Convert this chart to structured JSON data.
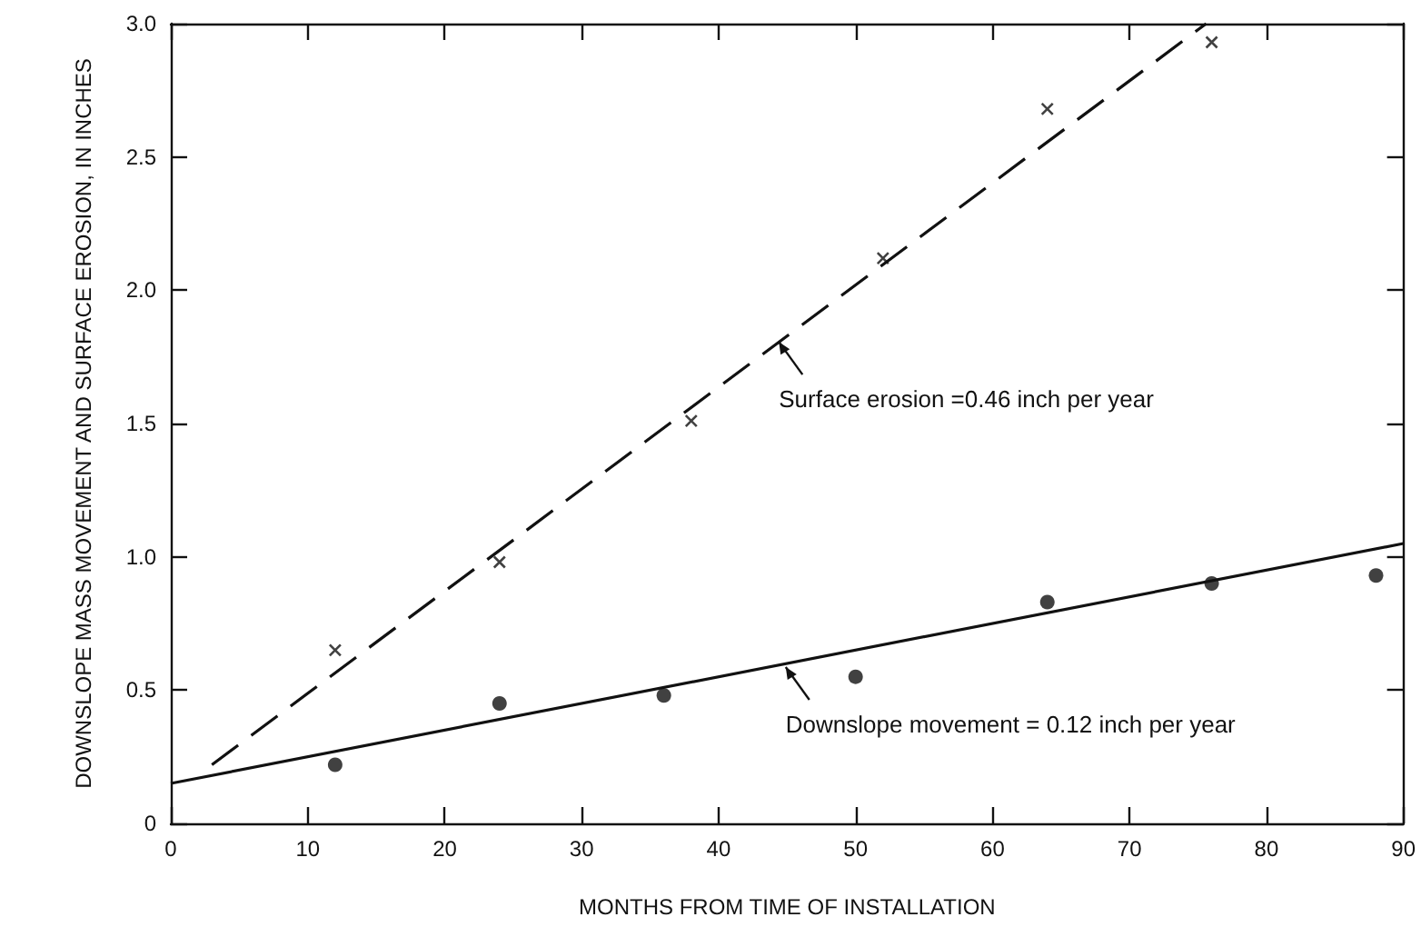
{
  "chart_data": {
    "type": "scatter",
    "xlabel": "MONTHS FROM TIME OF INSTALLATION",
    "ylabel": "DOWNSLOPE MASS MOVEMENT AND SURFACE EROSION, IN INCHES",
    "xlim": [
      0,
      90
    ],
    "xticks": [
      0,
      10,
      20,
      30,
      40,
      50,
      60,
      70,
      80,
      90
    ],
    "ylim": [
      0,
      3
    ],
    "yticks": [
      0,
      {
        "value": 0.5,
        "label": "0.5"
      },
      {
        "value": 1,
        "label": "1.0"
      },
      {
        "value": 1.5,
        "label": "1.5"
      },
      {
        "value": 2,
        "label": "2.0"
      },
      {
        "value": 2.5,
        "label": "2.5"
      },
      {
        "value": 3,
        "label": "3.0"
      }
    ],
    "grid": false,
    "series": [
      {
        "marker": "cross",
        "color": "#111111",
        "x": [
          12,
          24,
          38,
          52,
          64,
          76
        ],
        "values": [
          0.65,
          0.98,
          1.51,
          2.12,
          2.68,
          2.93
        ]
      },
      {
        "marker": "circle",
        "color": "#111111",
        "x": [
          12,
          24,
          36,
          50,
          64,
          76,
          88
        ],
        "values": [
          0.22,
          0.45,
          0.48,
          0.55,
          0.83,
          0.9,
          0.93
        ]
      },
      {
        "type": "line",
        "marker": "none",
        "line_style": "dashed",
        "color": "#111111",
        "x": [
          3,
          75.6
        ],
        "values": [
          0.22,
          3.0
        ]
      },
      {
        "type": "line",
        "marker": "none",
        "line_style": "solid",
        "color": "#111111",
        "x": [
          0,
          90
        ],
        "values": [
          0.15,
          1.05
        ]
      }
    ],
    "annotations": [
      {
        "text": "Surface erosion =0.46 inch per year",
        "x": 44,
        "y": 1.82
      },
      {
        "text": "Downslope movement = 0.12 inch per year",
        "x": 44.5,
        "y": 0.6
      }
    ]
  }
}
